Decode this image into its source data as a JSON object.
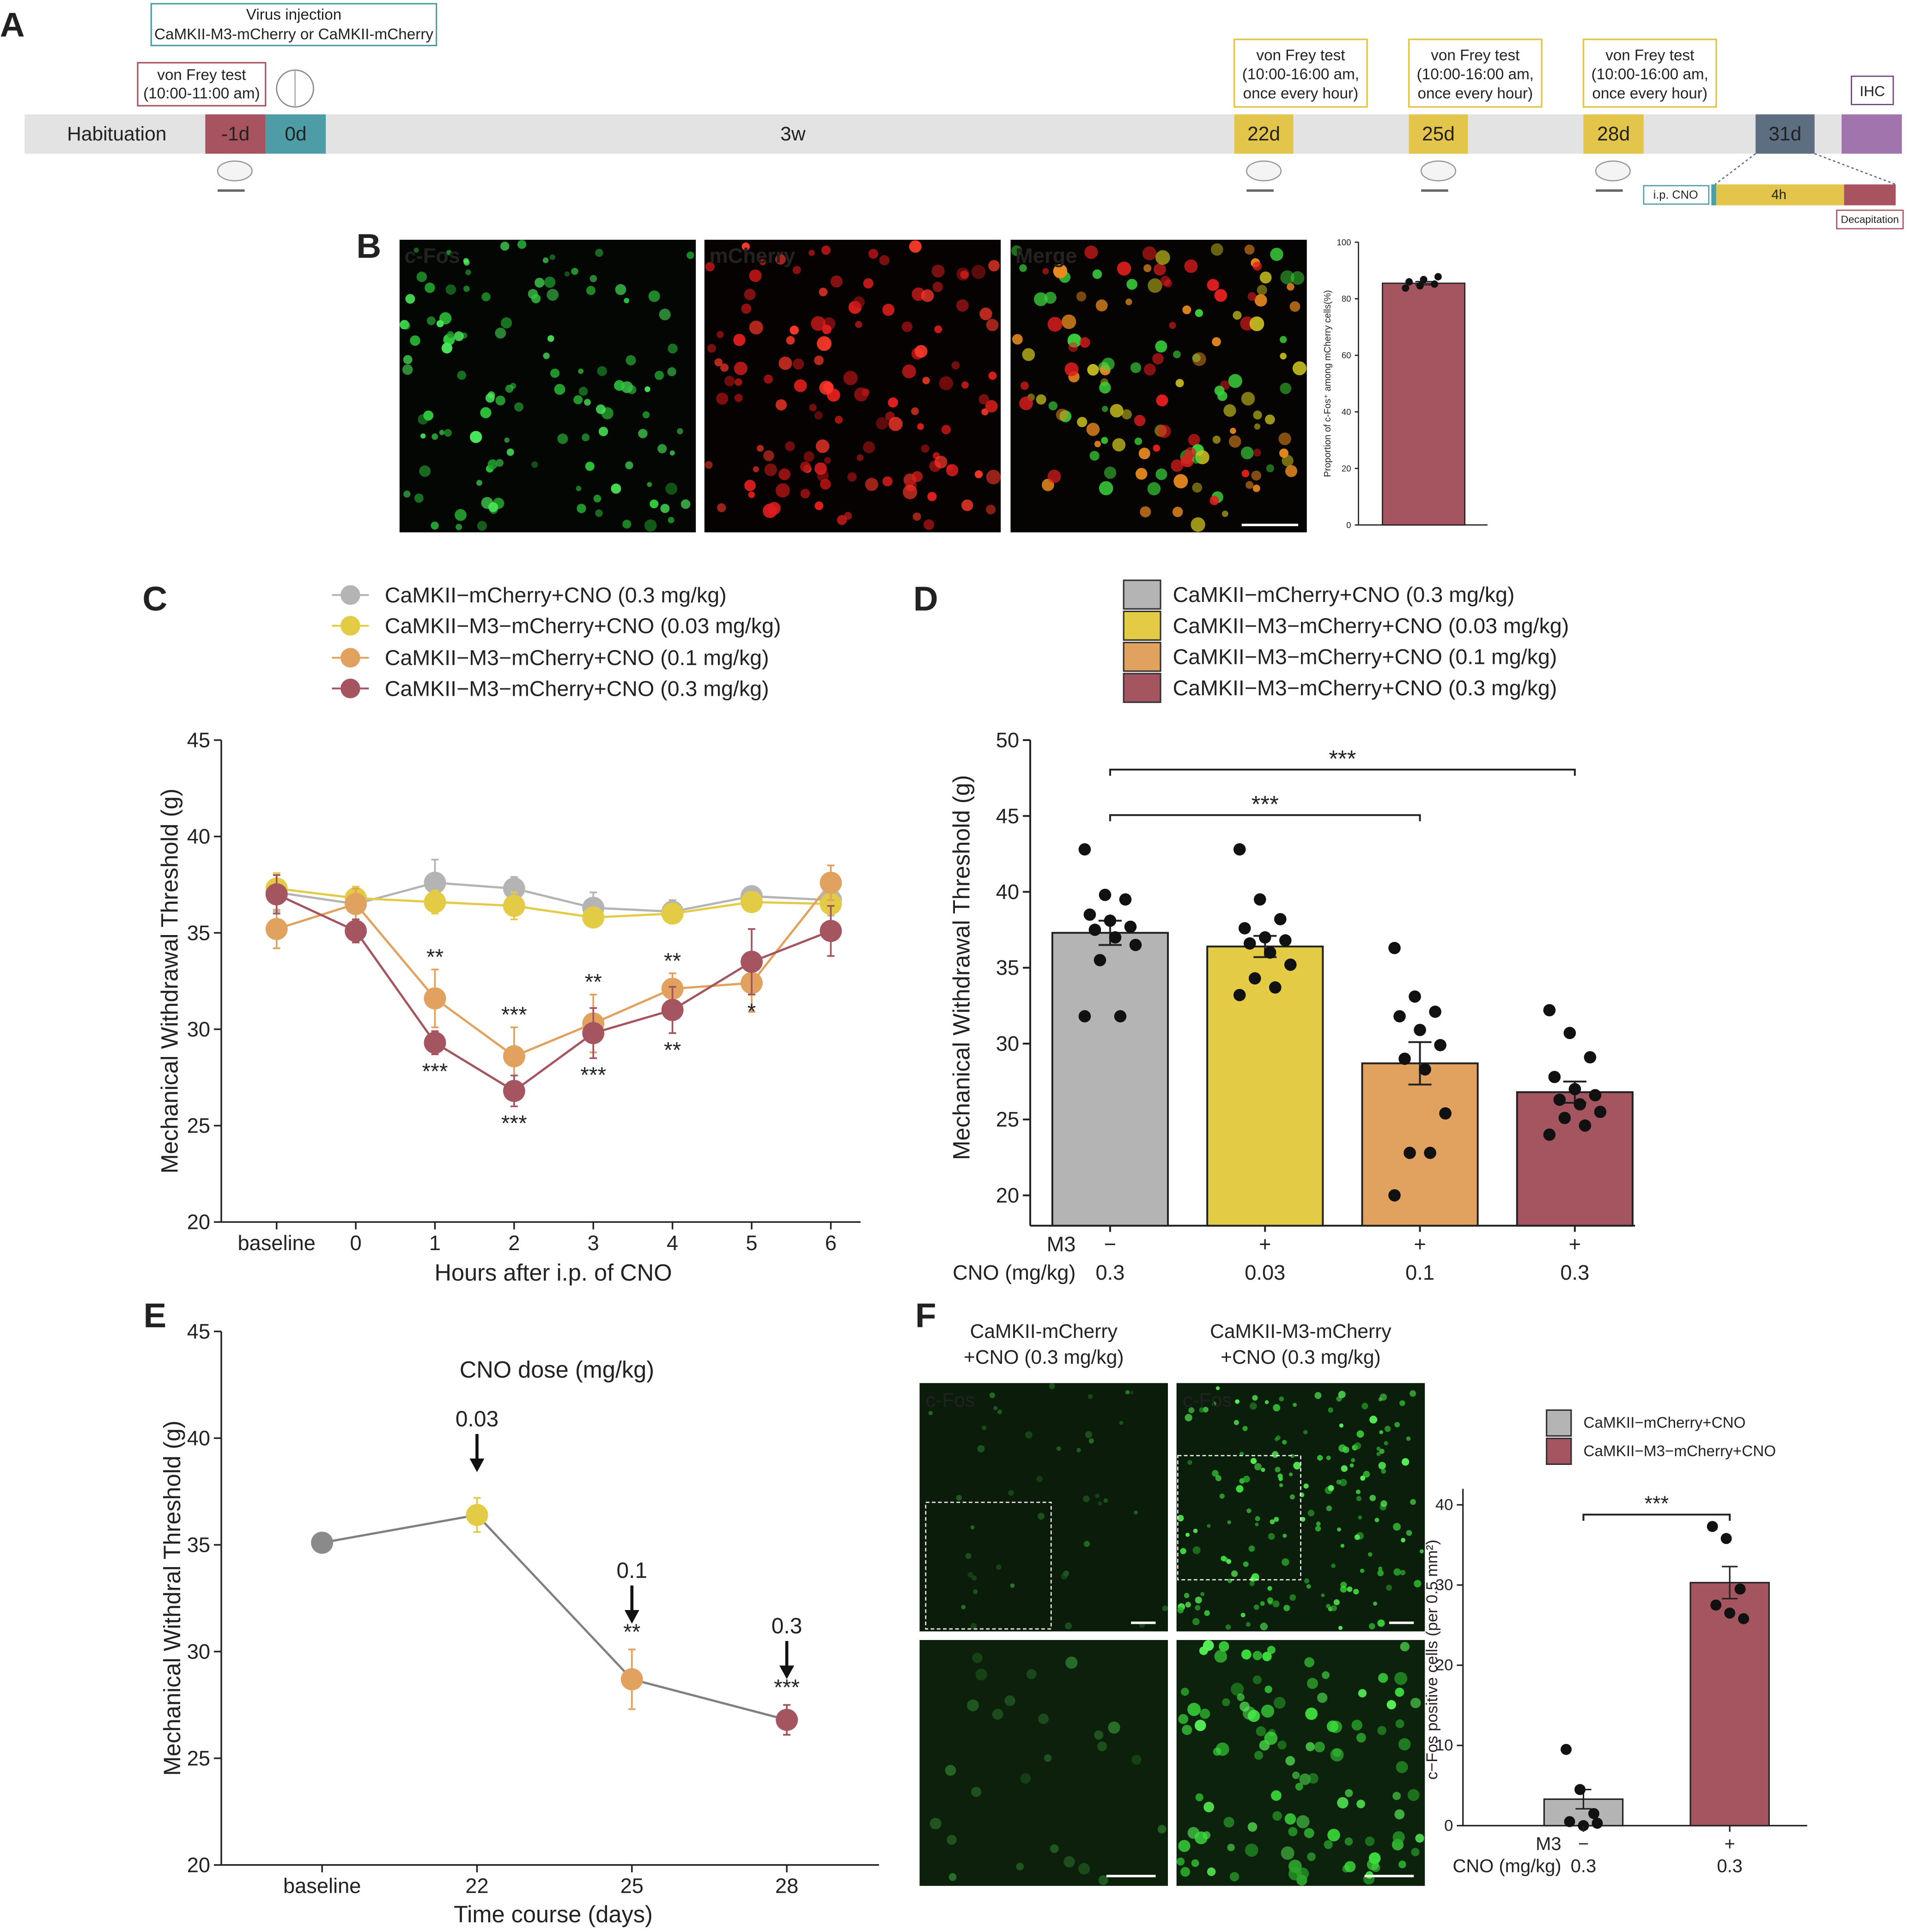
{
  "panel_labels": [
    "A",
    "B",
    "C",
    "D",
    "E",
    "F"
  ],
  "timeline": {
    "virus_box": {
      "title": "Virus injection",
      "subtitle": "CaMKII-M3-mCherry or CaMKII-mCherry"
    },
    "baseline_test": [
      "von Frey test",
      "(10:00-11:00 am)"
    ],
    "stages": [
      "Habituation",
      "-1d",
      "0d",
      "3w",
      "22d",
      "25d",
      "28d",
      "31d"
    ],
    "tests": [
      [
        "von Frey test",
        "(10:00-16:00 am,",
        "once every hour)"
      ],
      [
        "von Frey test",
        "(10:00-16:00 am,",
        "once every hour)"
      ],
      [
        "von Frey test",
        "(10:00-16:00 am,",
        "once every hour)"
      ]
    ],
    "ihc": "IHC",
    "injection": "i.p. CNO",
    "duration": "4h",
    "end": "Decapitation"
  },
  "images": {
    "b_labels": [
      "c-Fos",
      "mCherry",
      "Merge"
    ],
    "f_titles": [
      [
        "CaMKII-mCherry",
        "+CNO (0.3 mg/kg)"
      ],
      [
        "CaMKII-M3-mCherry",
        "+CNO (0.3 mg/kg)"
      ]
    ],
    "f_labels": [
      "c-Fos",
      "c-Fos"
    ]
  },
  "chart_data": [
    {
      "type": "bar",
      "y_label": "Proportion of c-Fos⁺ among mCherry cells(%)",
      "values": [
        85.5
      ],
      "errors": [
        0.6
      ],
      "points": [
        [
          83.8,
          84.6,
          85.2,
          86.0,
          86.8,
          87.8
        ]
      ],
      "colors": [
        "#a45560"
      ],
      "ylim": [
        0,
        100
      ],
      "yticks": [
        0,
        20,
        40,
        60,
        80,
        100
      ]
    },
    {
      "type": "line",
      "x_label": "Hours after i.p. of CNO",
      "y_label": "Mechanical Withdrawal Threshold (g)",
      "categories": [
        "baseline",
        "0",
        "1",
        "2",
        "3",
        "4",
        "5",
        "6"
      ],
      "series": [
        {
          "name": "CaMKII−mCherry+CNO (0.3 mg/kg)",
          "color": "#b4b4b4",
          "values": [
            37.1,
            36.5,
            37.6,
            37.3,
            36.3,
            36.1,
            36.9,
            36.7
          ],
          "errors": [
            1.0,
            0.8,
            1.2,
            0.6,
            0.8,
            0.6,
            0.5,
            0.8
          ],
          "significance": [
            null,
            null,
            null,
            null,
            null,
            null,
            null,
            null
          ]
        },
        {
          "name": "CaMKII−M3−mCherry+CNO (0.03 mg/kg)",
          "color": "#e3cb45",
          "values": [
            37.3,
            36.8,
            36.6,
            36.4,
            35.8,
            36.0,
            36.6,
            36.5
          ],
          "errors": [
            0.8,
            0.6,
            0.6,
            0.7,
            0.5,
            0.5,
            0.4,
            0.5
          ],
          "significance": [
            null,
            null,
            null,
            null,
            null,
            null,
            null,
            null
          ]
        },
        {
          "name": "CaMKII−M3−mCherry+CNO (0.1 mg/kg)",
          "color": "#e0a25e",
          "values": [
            35.2,
            36.5,
            31.6,
            28.6,
            30.3,
            32.1,
            32.4,
            37.6
          ],
          "errors": [
            1.0,
            0.8,
            1.5,
            1.5,
            1.5,
            0.8,
            1.5,
            0.9
          ],
          "significance": [
            null,
            null,
            "**",
            "***",
            "**",
            "**",
            null,
            null
          ]
        },
        {
          "name": "CaMKII−M3−mCherry+CNO (0.3 mg/kg)",
          "color": "#a45560",
          "values": [
            37.0,
            35.1,
            29.3,
            26.8,
            29.8,
            31.0,
            33.5,
            35.1
          ],
          "errors": [
            1.0,
            0.6,
            0.6,
            0.8,
            1.3,
            1.2,
            1.7,
            1.3
          ],
          "significance": [
            null,
            null,
            "***",
            "***",
            "***",
            "**",
            "*",
            null
          ]
        }
      ],
      "ylim": [
        20,
        45
      ],
      "yticks": [
        20,
        25,
        30,
        35,
        40,
        45
      ]
    },
    {
      "type": "bar",
      "y_label": "Mechanical Withdrawal Threshold (g)",
      "legend": [
        "CaMKII−mCherry+CNO (0.3 mg/kg)",
        "CaMKII−M3−mCherry+CNO (0.03 mg/kg)",
        "CaMKII−M3−mCherry+CNO (0.1 mg/kg)",
        "CaMKII−M3−mCherry+CNO (0.3 mg/kg)"
      ],
      "colors": [
        "#b4b4b4",
        "#e3cb45",
        "#e0a25e",
        "#a45560"
      ],
      "row_labels": [
        "M3",
        "CNO (mg/kg)"
      ],
      "m3": [
        "−",
        "+",
        "+",
        "+"
      ],
      "cno": [
        "0.3",
        "0.03",
        "0.1",
        "0.3"
      ],
      "values": [
        37.3,
        36.4,
        28.7,
        26.8
      ],
      "errors": [
        0.8,
        0.7,
        1.4,
        0.7
      ],
      "points": [
        [
          42.8,
          39.8,
          39.5,
          38.5,
          38.1,
          37.7,
          37.5,
          37.0,
          36.5,
          35.5,
          31.8,
          31.8
        ],
        [
          42.8,
          39.5,
          38.2,
          37.6,
          37.0,
          36.8,
          36.6,
          36.0,
          35.2,
          34.3,
          33.7,
          33.2
        ],
        [
          36.3,
          33.1,
          32.1,
          31.8,
          30.9,
          29.9,
          29.0,
          28.3,
          25.4,
          22.8,
          22.8,
          20.0
        ],
        [
          32.2,
          30.7,
          29.1,
          27.8,
          27.0,
          26.6,
          26.3,
          26.0,
          25.5,
          25.1,
          24.6,
          24.0
        ]
      ],
      "comparisons": [
        {
          "groups": [
            0,
            2
          ],
          "label": "***"
        },
        {
          "groups": [
            0,
            3
          ],
          "label": "***"
        }
      ],
      "ylim": [
        18,
        50
      ],
      "yticks": [
        20,
        25,
        30,
        35,
        40,
        45,
        50
      ]
    },
    {
      "type": "line",
      "title": "CNO dose (mg/kg)",
      "x_label": "Time course (days)",
      "y_label": "Mechanical Withdral Threshold (g)",
      "categories": [
        "baseline",
        "22",
        "25",
        "28"
      ],
      "values": [
        35.1,
        36.4,
        28.7,
        26.8
      ],
      "errors": [
        0.3,
        0.8,
        1.4,
        0.7
      ],
      "colors": [
        "#8a8a8a",
        "#e3cb45",
        "#e0a25e",
        "#a45560"
      ],
      "line_color": "#808080",
      "doses": [
        null,
        "0.03",
        "0.1",
        "0.3"
      ],
      "significance": [
        null,
        null,
        "**",
        "***"
      ],
      "ylim": [
        20,
        45
      ],
      "yticks": [
        20,
        25,
        30,
        35,
        40,
        45
      ]
    },
    {
      "type": "bar",
      "y_label": "c−Fos positive cells (per 0.5 mm²)",
      "legend": [
        "CaMKII−mCherry+CNO",
        "CaMKII−M3−mCherry+CNO"
      ],
      "colors": [
        "#b4b4b4",
        "#a45560"
      ],
      "row_labels": [
        "M3",
        "CNO (mg/kg)"
      ],
      "m3": [
        "−",
        "+"
      ],
      "cno": [
        "0.3",
        "0.3"
      ],
      "values": [
        3.3,
        30.3
      ],
      "errors": [
        1.2,
        2.0
      ],
      "points": [
        [
          9.5,
          4.5,
          1.5,
          0.5,
          0.0,
          0.3
        ],
        [
          37.3,
          35.8,
          29.5,
          27.5,
          26.5,
          25.8
        ]
      ],
      "comparisons": [
        {
          "groups": [
            0,
            1
          ],
          "label": "***"
        }
      ],
      "ylim": [
        0,
        42
      ],
      "yticks": [
        0,
        10,
        20,
        30,
        40
      ]
    }
  ]
}
